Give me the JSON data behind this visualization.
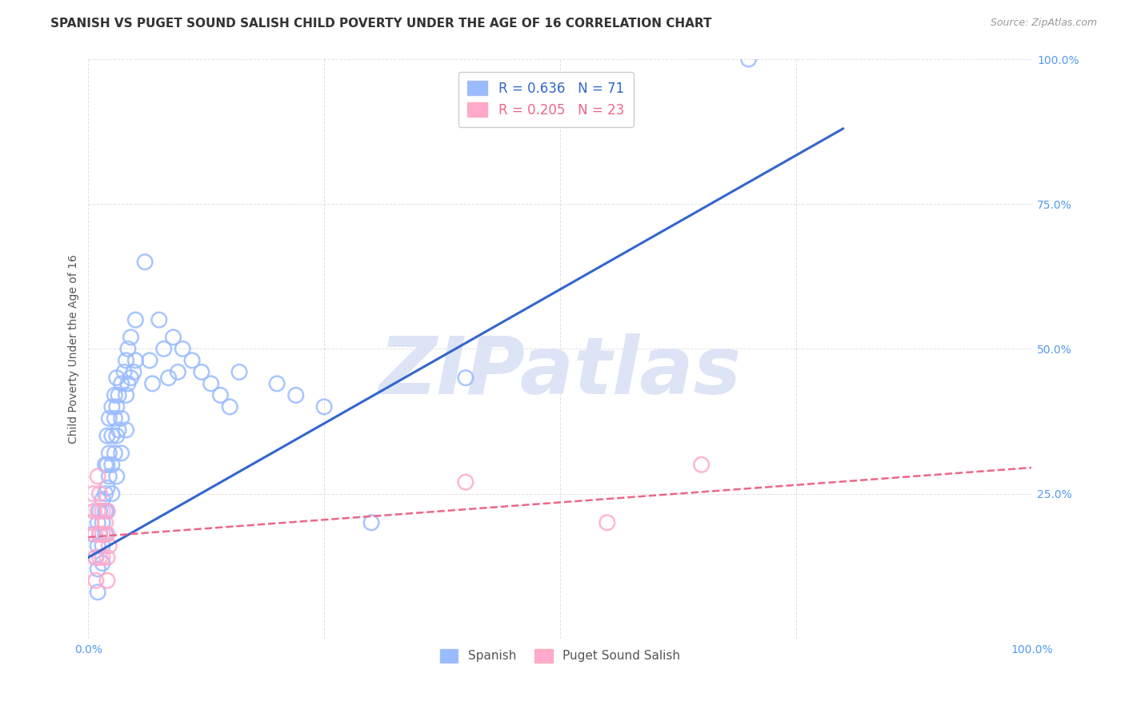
{
  "title": "SPANISH VS PUGET SOUND SALISH CHILD POVERTY UNDER THE AGE OF 16 CORRELATION CHART",
  "source": "Source: ZipAtlas.com",
  "ylabel": "Child Poverty Under the Age of 16",
  "xlim": [
    0.0,
    1.0
  ],
  "ylim": [
    0.0,
    1.0
  ],
  "xticks": [
    0.0,
    0.25,
    0.5,
    0.75,
    1.0
  ],
  "yticks": [
    0.0,
    0.25,
    0.5,
    0.75,
    1.0
  ],
  "xticklabels": [
    "0.0%",
    "",
    "",
    "",
    "100.0%"
  ],
  "yticklabels": [
    "",
    "25.0%",
    "50.0%",
    "75.0%",
    "100.0%"
  ],
  "spanish_R": 0.636,
  "spanish_N": 71,
  "salish_R": 0.205,
  "salish_N": 23,
  "spanish_color": "#99bbff",
  "salish_color": "#ffaacc",
  "spanish_line_color": "#3366cc",
  "salish_line_color": "#ee6688",
  "watermark_color": "#dde4f5",
  "spanish_points": [
    [
      0.005,
      0.18
    ],
    [
      0.008,
      0.14
    ],
    [
      0.01,
      0.2
    ],
    [
      0.01,
      0.16
    ],
    [
      0.01,
      0.12
    ],
    [
      0.01,
      0.08
    ],
    [
      0.012,
      0.22
    ],
    [
      0.012,
      0.18
    ],
    [
      0.015,
      0.24
    ],
    [
      0.015,
      0.2
    ],
    [
      0.015,
      0.16
    ],
    [
      0.015,
      0.13
    ],
    [
      0.018,
      0.3
    ],
    [
      0.018,
      0.25
    ],
    [
      0.018,
      0.22
    ],
    [
      0.018,
      0.18
    ],
    [
      0.02,
      0.35
    ],
    [
      0.02,
      0.3
    ],
    [
      0.02,
      0.26
    ],
    [
      0.02,
      0.22
    ],
    [
      0.022,
      0.38
    ],
    [
      0.022,
      0.32
    ],
    [
      0.022,
      0.28
    ],
    [
      0.025,
      0.4
    ],
    [
      0.025,
      0.35
    ],
    [
      0.025,
      0.3
    ],
    [
      0.025,
      0.25
    ],
    [
      0.028,
      0.42
    ],
    [
      0.028,
      0.38
    ],
    [
      0.028,
      0.32
    ],
    [
      0.03,
      0.45
    ],
    [
      0.03,
      0.4
    ],
    [
      0.03,
      0.35
    ],
    [
      0.03,
      0.28
    ],
    [
      0.032,
      0.42
    ],
    [
      0.032,
      0.36
    ],
    [
      0.035,
      0.44
    ],
    [
      0.035,
      0.38
    ],
    [
      0.035,
      0.32
    ],
    [
      0.038,
      0.46
    ],
    [
      0.04,
      0.48
    ],
    [
      0.04,
      0.42
    ],
    [
      0.04,
      0.36
    ],
    [
      0.042,
      0.5
    ],
    [
      0.042,
      0.44
    ],
    [
      0.045,
      0.52
    ],
    [
      0.045,
      0.45
    ],
    [
      0.048,
      0.46
    ],
    [
      0.05,
      0.55
    ],
    [
      0.05,
      0.48
    ],
    [
      0.06,
      0.65
    ],
    [
      0.065,
      0.48
    ],
    [
      0.068,
      0.44
    ],
    [
      0.075,
      0.55
    ],
    [
      0.08,
      0.5
    ],
    [
      0.085,
      0.45
    ],
    [
      0.09,
      0.52
    ],
    [
      0.095,
      0.46
    ],
    [
      0.1,
      0.5
    ],
    [
      0.11,
      0.48
    ],
    [
      0.12,
      0.46
    ],
    [
      0.13,
      0.44
    ],
    [
      0.14,
      0.42
    ],
    [
      0.15,
      0.4
    ],
    [
      0.16,
      0.46
    ],
    [
      0.2,
      0.44
    ],
    [
      0.22,
      0.42
    ],
    [
      0.25,
      0.4
    ],
    [
      0.3,
      0.2
    ],
    [
      0.4,
      0.45
    ],
    [
      0.7,
      1.0
    ]
  ],
  "salish_points": [
    [
      0.003,
      0.2
    ],
    [
      0.005,
      0.25
    ],
    [
      0.006,
      0.22
    ],
    [
      0.007,
      0.18
    ],
    [
      0.008,
      0.14
    ],
    [
      0.008,
      0.1
    ],
    [
      0.01,
      0.28
    ],
    [
      0.01,
      0.22
    ],
    [
      0.012,
      0.25
    ],
    [
      0.012,
      0.18
    ],
    [
      0.012,
      0.14
    ],
    [
      0.015,
      0.22
    ],
    [
      0.015,
      0.18
    ],
    [
      0.015,
      0.14
    ],
    [
      0.018,
      0.2
    ],
    [
      0.02,
      0.22
    ],
    [
      0.02,
      0.18
    ],
    [
      0.02,
      0.14
    ],
    [
      0.02,
      0.1
    ],
    [
      0.022,
      0.16
    ],
    [
      0.4,
      0.27
    ],
    [
      0.55,
      0.2
    ],
    [
      0.65,
      0.3
    ]
  ],
  "spanish_line_x": [
    0.0,
    0.8
  ],
  "spanish_line_y": [
    0.14,
    0.88
  ],
  "salish_line_x": [
    0.0,
    1.0
  ],
  "salish_line_y": [
    0.175,
    0.295
  ],
  "background_color": "#ffffff",
  "grid_color": "#cccccc",
  "title_fontsize": 11,
  "axis_label_fontsize": 10,
  "tick_fontsize": 10,
  "legend_fontsize": 12
}
